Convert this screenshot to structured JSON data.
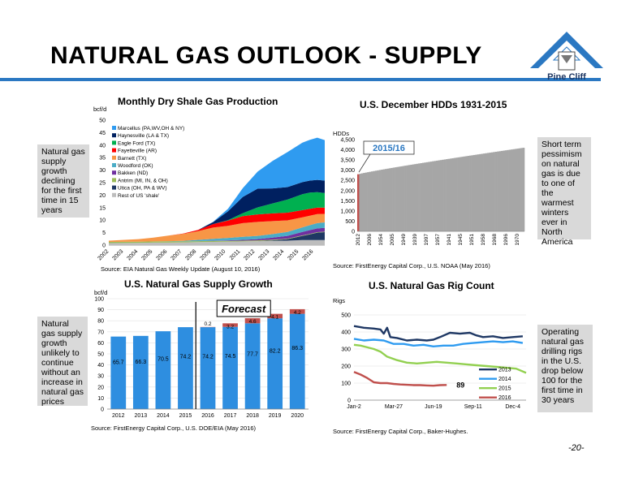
{
  "title": "NATURAL GAS OUTLOOK - SUPPLY",
  "logo_text": "Pine Cliff",
  "page_number": "-20-",
  "colors": {
    "accent": "#2b78c2",
    "bar_blue": "#2e8ee0",
    "bar_red": "#c0504d"
  },
  "notes": {
    "shale": "Natural gas supply growth declining for the first time in 15 years",
    "hdd": "Short term pessimism on natural gas is due to one of the warmest winters ever in North America",
    "supply": "Natural gas supply growth unlikely to continue without an increase in natural gas prices",
    "rigs": "Operating natural gas drilling rigs in the U.S. drop below 100 for the first time in 30 years"
  },
  "chart_data": [
    {
      "id": "shale",
      "type": "area",
      "title": "Monthly Dry Shale Gas Production",
      "ylabel": "bcf/d",
      "ylim": [
        0,
        50
      ],
      "yticks": [
        0,
        5,
        10,
        15,
        20,
        25,
        30,
        35,
        40,
        45,
        50
      ],
      "xticks": [
        "2002",
        "2003",
        "2004",
        "2005",
        "2006",
        "2007",
        "2008",
        "2009",
        "2010",
        "2011",
        "2012",
        "2013",
        "2014",
        "2015",
        "2016"
      ],
      "x": [
        2002,
        2004,
        2005,
        2006,
        2007,
        2008,
        2009,
        2010,
        2011,
        2012,
        2013,
        2014,
        2015,
        2015.5,
        2016,
        2016.5
      ],
      "series": [
        {
          "name": "Rest of US 'shale'",
          "color": "#bdbdbd",
          "values": [
            0.8,
            0.9,
            1.0,
            1.0,
            1.1,
            1.2,
            1.3,
            1.4,
            1.5,
            1.6,
            1.7,
            1.8,
            2.0,
            2.0,
            2.0,
            2.0
          ]
        },
        {
          "name": "Utica (OH, PA & WV)",
          "color": "#1f3864",
          "values": [
            0,
            0,
            0,
            0,
            0,
            0,
            0,
            0,
            0,
            0,
            0.2,
            0.6,
            1.7,
            2.3,
            3.0,
            3.2
          ]
        },
        {
          "name": "Antrim (MI, IN, & OH)",
          "color": "#9bbb59",
          "values": [
            0.5,
            0.5,
            0.5,
            0.5,
            0.4,
            0.4,
            0.4,
            0.3,
            0.3,
            0.3,
            0.3,
            0.2,
            0.2,
            0.2,
            0.2,
            0.2
          ]
        },
        {
          "name": "Bakken (ND)",
          "color": "#7030a0",
          "values": [
            0,
            0,
            0,
            0,
            0,
            0,
            0.1,
            0.2,
            0.3,
            0.5,
            0.8,
            1.1,
            1.4,
            1.5,
            1.5,
            1.5
          ]
        },
        {
          "name": "Woodford (OK)",
          "color": "#4bacc6",
          "values": [
            0,
            0,
            0,
            0.1,
            0.2,
            0.5,
            0.7,
            1.0,
            1.2,
            1.3,
            1.4,
            1.6,
            1.8,
            2.0,
            2.1,
            2.2
          ]
        },
        {
          "name": "Barnett (TX)",
          "color": "#f79646",
          "values": [
            0.5,
            1.0,
            1.5,
            2.2,
            2.8,
            3.5,
            4.5,
            4.8,
            5.5,
            5.6,
            5.2,
            4.6,
            4.0,
            3.8,
            3.6,
            3.4
          ]
        },
        {
          "name": "Fayetteville (AR)",
          "color": "#ff0000",
          "values": [
            0,
            0,
            0,
            0,
            0.1,
            0.5,
            1.4,
            2.1,
            2.8,
            3.0,
            3.1,
            3.1,
            2.9,
            2.7,
            2.6,
            2.5
          ]
        },
        {
          "name": "Eagle Ford (TX)",
          "color": "#00b050",
          "values": [
            0,
            0,
            0,
            0,
            0,
            0,
            0,
            0.2,
            1.2,
            2.8,
            4.0,
            5.2,
            6.4,
            6.5,
            6.2,
            5.8
          ]
        },
        {
          "name": "Haynesville (LA & TX)",
          "color": "#002060",
          "values": [
            0,
            0,
            0,
            0,
            0,
            0,
            0.8,
            3.5,
            6.5,
            7.5,
            6.0,
            5.0,
            4.8,
            4.8,
            4.9,
            5.0
          ]
        },
        {
          "name": "Marcellus (PA,WV,OH & NY)",
          "color": "#2f9bf0",
          "values": [
            0,
            0,
            0,
            0,
            0,
            0,
            0.1,
            1.0,
            3.5,
            6.8,
            11.0,
            14.0,
            15.8,
            16.3,
            16.9,
            16.2
          ]
        }
      ],
      "source": "Source: EIA Natural Gas Weekly Update (August 10, 2016)"
    },
    {
      "id": "hdd",
      "type": "bar",
      "title": "U.S. December HDDs 1931-2015",
      "ylabel": "HDDs",
      "ylim": [
        0,
        4500
      ],
      "yticks": [
        0,
        500,
        1000,
        1500,
        2000,
        2500,
        3000,
        3500,
        4000,
        4500
      ],
      "ytick_labels": [
        "0",
        "500",
        "1,000",
        "1,500",
        "2,000",
        "2,500",
        "3,000",
        "3,500",
        "4,000",
        "4,500"
      ],
      "xticks": [
        "2012",
        "2006",
        "1954",
        "2005",
        "1949",
        "1939",
        "1997",
        "1957",
        "1941",
        "1945",
        "1951",
        "1958",
        "1968",
        "1996",
        "1970"
      ],
      "sorted_range": [
        2800,
        4100
      ],
      "bar_count": 85,
      "highlight_index": 0,
      "highlight_color": "#c0504d",
      "bar_color": "#a6a6a6",
      "callout": "2015/16",
      "source": "Source: FirstEnergy Capital Corp., U.S. NOAA (May 2016)"
    },
    {
      "id": "supply",
      "type": "bar",
      "title": "U.S. Natural Gas Supply Growth",
      "ylabel": "bcf/d",
      "ylim": [
        0,
        100
      ],
      "yticks": [
        0,
        10,
        20,
        30,
        40,
        50,
        60,
        70,
        80,
        90,
        100
      ],
      "categories": [
        "2012",
        "2013",
        "2014",
        "2015",
        "2016",
        "2017",
        "2018",
        "2019",
        "2020"
      ],
      "series": [
        {
          "name": "Base",
          "values": [
            65.7,
            66.3,
            70.5,
            74.2,
            74.2,
            74.5,
            77.7,
            82.2,
            86.3
          ]
        },
        {
          "name": "Growth",
          "values": [
            0,
            0,
            0,
            0,
            0.2,
            3.2,
            4.6,
            4.1,
            4.2
          ]
        }
      ],
      "labels": {
        "base": [
          "65.7",
          "66.3",
          "70.5",
          "74.2",
          "74.2",
          "74.5",
          "77.7",
          "82.2",
          "86.3"
        ],
        "growth": [
          "",
          "",
          "",
          "",
          "0.2",
          "3.2",
          "4.6",
          "4.1",
          "4.2"
        ]
      },
      "forecast_label": "Forecast",
      "source": "Source: FirstEnergy Capital Corp., U.S. DOE/EIA (May 2016)"
    },
    {
      "id": "rigs",
      "type": "line",
      "title": "U.S. Natural Gas Rig Count",
      "ylabel": "Rigs",
      "ylim": [
        0,
        500
      ],
      "yticks": [
        0,
        100,
        200,
        300,
        400,
        500
      ],
      "xlim": [
        1,
        53
      ],
      "xticks": [
        {
          "x": 1,
          "label": "Jan-2"
        },
        {
          "x": 13,
          "label": "Mar-27"
        },
        {
          "x": 25,
          "label": "Jun-19"
        },
        {
          "x": 37,
          "label": "Sep-11"
        },
        {
          "x": 49,
          "label": "Dec-4"
        }
      ],
      "series": [
        {
          "name": "2013",
          "color": "#1f3864",
          "x": [
            1,
            4,
            7,
            9,
            10,
            11,
            12,
            14,
            17,
            20,
            23,
            25,
            27,
            30,
            33,
            36,
            38,
            40,
            43,
            46,
            49,
            52
          ],
          "values": [
            435,
            425,
            420,
            415,
            390,
            425,
            370,
            365,
            350,
            355,
            350,
            355,
            370,
            395,
            390,
            395,
            380,
            370,
            375,
            365,
            370,
            375
          ]
        },
        {
          "name": "2014",
          "color": "#2f9bf0",
          "x": [
            1,
            4,
            7,
            10,
            13,
            16,
            19,
            22,
            25,
            28,
            31,
            34,
            37,
            40,
            43,
            46,
            49,
            52
          ],
          "values": [
            360,
            350,
            355,
            350,
            330,
            330,
            320,
            325,
            315,
            320,
            320,
            330,
            335,
            340,
            345,
            340,
            345,
            335
          ]
        },
        {
          "name": "2015",
          "color": "#92d050",
          "x": [
            1,
            3,
            5,
            7,
            9,
            11,
            14,
            17,
            20,
            23,
            26,
            29,
            32,
            35,
            38,
            41,
            44,
            47,
            50,
            53
          ],
          "values": [
            325,
            320,
            310,
            300,
            285,
            255,
            235,
            220,
            215,
            220,
            225,
            220,
            215,
            210,
            205,
            200,
            195,
            190,
            185,
            160
          ]
        },
        {
          "name": "2016",
          "color": "#c0504d",
          "x": [
            1,
            3,
            5,
            7,
            9,
            11,
            13,
            15,
            17,
            19,
            21,
            23,
            25,
            27,
            29
          ],
          "values": [
            165,
            150,
            130,
            105,
            100,
            100,
            95,
            92,
            90,
            88,
            88,
            86,
            85,
            88,
            89
          ]
        }
      ],
      "annotation": "89",
      "source": "Source: FirstEnergy Capital Corp., Baker-Hughes."
    }
  ]
}
